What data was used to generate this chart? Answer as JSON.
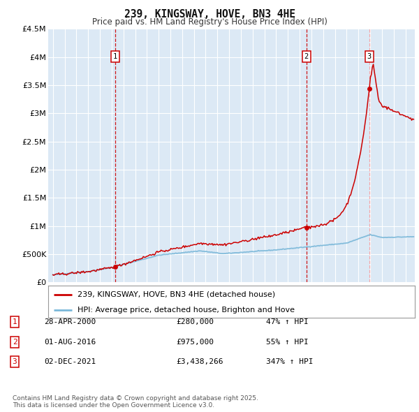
{
  "title": "239, KINGSWAY, HOVE, BN3 4HE",
  "subtitle": "Price paid vs. HM Land Registry's House Price Index (HPI)",
  "fig_facecolor": "#ffffff",
  "plot_bg_color": "#dce9f5",
  "red_line_color": "#cc0000",
  "blue_line_color": "#7ab8d9",
  "grid_color": "#ffffff",
  "sale_dates_num": [
    2000.32,
    2016.58,
    2021.92
  ],
  "sale_prices": [
    280000,
    975000,
    3438266
  ],
  "sale_labels": [
    "1",
    "2",
    "3"
  ],
  "vline_colors": [
    "#cc0000",
    "#cc0000",
    "#ff8888"
  ],
  "legend_line1": "239, KINGSWAY, HOVE, BN3 4HE (detached house)",
  "legend_line2": "HPI: Average price, detached house, Brighton and Hove",
  "table_rows": [
    [
      "1",
      "28-APR-2000",
      "£280,000",
      "47% ↑ HPI"
    ],
    [
      "2",
      "01-AUG-2016",
      "£975,000",
      "55% ↑ HPI"
    ],
    [
      "3",
      "02-DEC-2021",
      "£3,438,266",
      "347% ↑ HPI"
    ]
  ],
  "footnote": "Contains HM Land Registry data © Crown copyright and database right 2025.\nThis data is licensed under the Open Government Licence v3.0.",
  "ylim": [
    0,
    4500000
  ],
  "yticks": [
    0,
    500000,
    1000000,
    1500000,
    2000000,
    2500000,
    3000000,
    3500000,
    4000000,
    4500000
  ],
  "ytick_labels": [
    "£0",
    "£500K",
    "£1M",
    "£1.5M",
    "£2M",
    "£2.5M",
    "£3M",
    "£3.5M",
    "£4M",
    "£4.5M"
  ],
  "xlim_start": 1994.6,
  "xlim_end": 2025.8
}
